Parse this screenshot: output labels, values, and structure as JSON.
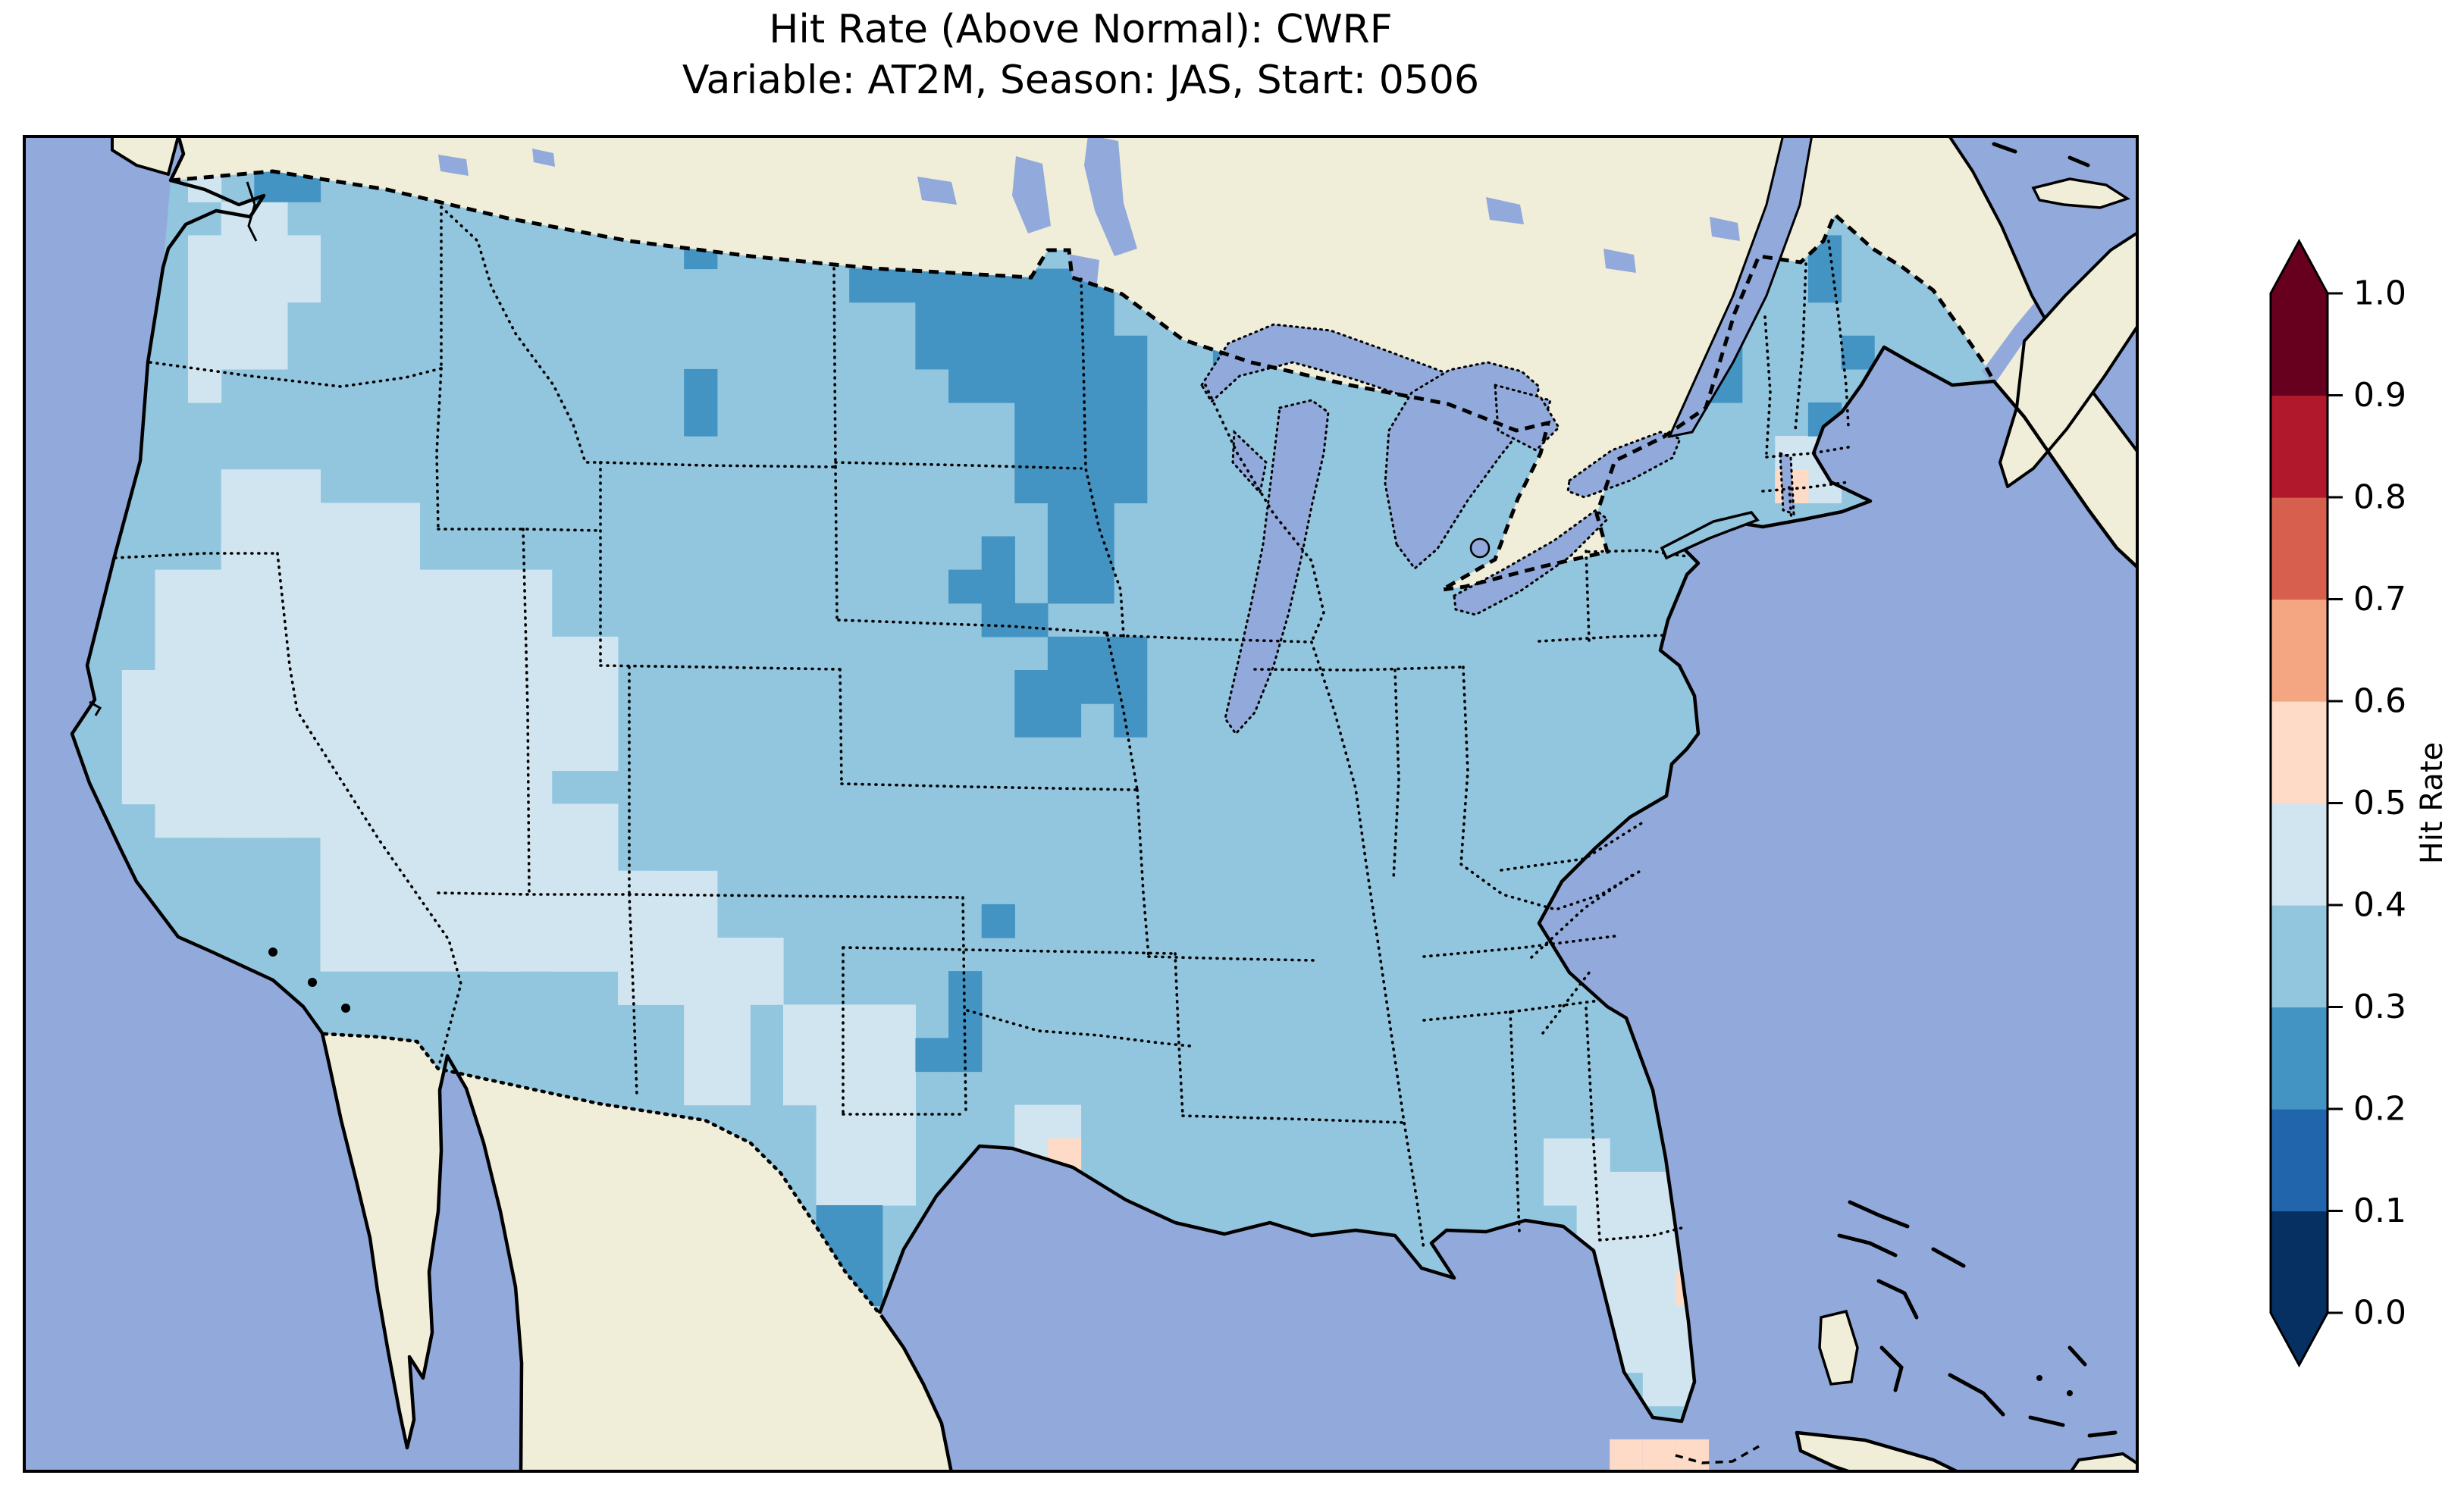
{
  "figure": {
    "title_line1": "Hit Rate (Above Normal): CWRF",
    "title_line2": "Variable: AT2M, Season: JAS, Start: 0506"
  },
  "colorbar": {
    "label": "Hit Rate",
    "ticks_top_to_bottom": [
      "1.0",
      "0.9",
      "0.8",
      "0.7",
      "0.6",
      "0.5",
      "0.4",
      "0.3",
      "0.2",
      "0.1",
      "0.0"
    ],
    "bin_colors_bottom_to_top": [
      "#053061",
      "#2166ac",
      "#4393c3",
      "#92c5de",
      "#d1e5f0",
      "#fddbc7",
      "#f4a582",
      "#d6604d",
      "#b2182b",
      "#67001f"
    ],
    "outline_color": "#000000"
  },
  "map": {
    "ocean_color": "#92a9db",
    "land_color": "#f0eed9",
    "lake_color": "#92a9db",
    "coastline_color": "#000000",
    "frame_color": "#000000"
  },
  "chart_data": {
    "type": "heatmap",
    "title": "Hit Rate (Above Normal): CWRF",
    "subtitle": "Variable: AT2M, Season: JAS, Start: 0506",
    "model": "CWRF",
    "variable": "AT2M",
    "season": "JAS",
    "start": "0506",
    "metric": "Hit Rate",
    "category": "Above Normal",
    "region": "Continental United States",
    "colormap": "RdBu_r (discrete, 10 bins of 0.1)",
    "value_range": [
      0.0,
      1.0
    ],
    "colorbar_ticks": [
      0.0,
      0.1,
      0.2,
      0.3,
      0.4,
      0.5,
      0.6,
      0.7,
      0.8,
      0.9,
      1.0
    ],
    "legend_position": "right",
    "grid": {
      "cols": 64,
      "rows": 40,
      "cell_w": 43.609,
      "cell_h": 44.125,
      "base_value_bin": "0.3-0.4",
      "base_color": "#92c5de",
      "patches": [
        {
          "bin": "0.4-0.5",
          "color": "#d1e5f0",
          "rects": [
            [
              4,
              13,
              4,
              8
            ],
            [
              6,
              11,
              6,
              10
            ],
            [
              12,
              13,
              4,
              7
            ],
            [
              9,
              20,
              6,
              5
            ],
            [
              14,
              20,
              4,
              5
            ],
            [
              6,
              10,
              3,
              3
            ],
            [
              16,
              15,
              2,
              4
            ],
            [
              3,
              16,
              2,
              4
            ],
            [
              6,
              2,
              2,
              5
            ],
            [
              5,
              3,
              4,
              2
            ],
            [
              5,
              0,
              1,
              2
            ],
            [
              5,
              4,
              1,
              4
            ],
            [
              16,
              22,
              3,
              3
            ],
            [
              18,
              22,
              3,
              4
            ],
            [
              20,
              25,
              2,
              4
            ],
            [
              21,
              24,
              2,
              2
            ],
            [
              23,
              26,
              4,
              3
            ],
            [
              24,
              29,
              3,
              3
            ],
            [
              30,
              29,
              2,
              2
            ],
            [
              46,
              30,
              2,
              2
            ],
            [
              47,
              31,
              3,
              2
            ],
            [
              47,
              33,
              4,
              2
            ],
            [
              48,
              35,
              3,
              2
            ],
            [
              49,
              37,
              2,
              1
            ],
            [
              53,
              9,
              2,
              2
            ]
          ]
        },
        {
          "bin": "0.2-0.3",
          "color": "#4393c3",
          "rects": [
            [
              7,
              0,
              2,
              2
            ],
            [
              25,
              4,
              3,
              1
            ],
            [
              28,
              4,
              5,
              4
            ],
            [
              30,
              8,
              4,
              3
            ],
            [
              31,
              11,
              2,
              3
            ],
            [
              27,
              5,
              2,
              2
            ],
            [
              33,
              6,
              1,
              2
            ],
            [
              20,
              3,
              1,
              1
            ],
            [
              20,
              7,
              1,
              2
            ],
            [
              29,
              12,
              1,
              3
            ],
            [
              28,
              13,
              2,
              1
            ],
            [
              31,
              15,
              3,
              2
            ],
            [
              30,
              16,
              2,
              2
            ],
            [
              33,
              17,
              1,
              1
            ],
            [
              30,
              14,
              1,
              1
            ],
            [
              28,
              25,
              1,
              3
            ],
            [
              27,
              27,
              1,
              1
            ],
            [
              24,
              32,
              2,
              3
            ],
            [
              23,
              34,
              1,
              1
            ],
            [
              36,
              6,
              1,
              1
            ],
            [
              38,
              10,
              1,
              1
            ],
            [
              54,
              3,
              1,
              2
            ],
            [
              51,
              6,
              1,
              2
            ],
            [
              55,
              6,
              1,
              1
            ],
            [
              54,
              8,
              1,
              1
            ],
            [
              29,
              23,
              1,
              1
            ]
          ]
        },
        {
          "bin": "0.5-0.6",
          "color": "#fddbc7",
          "rects": [
            [
              50,
              34,
              1,
              1
            ],
            [
              31,
              30,
              1,
              1
            ],
            [
              53,
              10,
              1,
              1
            ]
          ]
        }
      ],
      "unmasked_ocean_cells": {
        "bin": "0.5-0.6",
        "color": "#fddbc7",
        "cells": [
          [
            48,
            39
          ],
          [
            49,
            39
          ],
          [
            50,
            39
          ]
        ]
      }
    }
  }
}
